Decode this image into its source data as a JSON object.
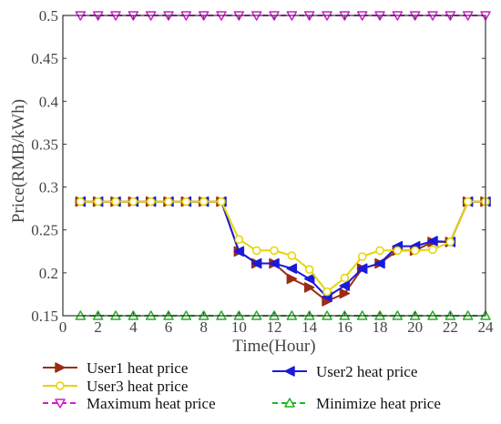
{
  "chart_data": {
    "type": "line",
    "title": "",
    "xlabel": "Time(Hour)",
    "ylabel": "Price(RMB/kWh)",
    "xlim": [
      0,
      24
    ],
    "ylim": [
      0.15,
      0.5
    ],
    "x_ticks": [
      0,
      2,
      4,
      6,
      8,
      10,
      12,
      14,
      16,
      18,
      20,
      22,
      24
    ],
    "y_ticks": [
      0.15,
      0.2,
      0.25,
      0.3,
      0.35,
      0.4,
      0.45,
      0.5
    ],
    "y_tick_labels": [
      "0.15",
      "0.2",
      "0.25",
      "0.3",
      "0.35",
      "0.4",
      "0.45",
      "0.5"
    ],
    "grid": false,
    "legend_position": "bottom",
    "x": [
      1,
      2,
      3,
      4,
      5,
      6,
      7,
      8,
      9,
      10,
      11,
      12,
      13,
      14,
      15,
      16,
      17,
      18,
      19,
      20,
      21,
      22,
      23,
      24
    ],
    "series": [
      {
        "name": "User1 heat price",
        "color": "#9b2d14",
        "marker": "triangle-right",
        "line_style": "solid",
        "values": [
          0.283,
          0.283,
          0.283,
          0.283,
          0.283,
          0.283,
          0.283,
          0.283,
          0.283,
          0.225,
          0.211,
          0.211,
          0.193,
          0.183,
          0.167,
          0.176,
          0.205,
          0.211,
          0.226,
          0.226,
          0.236,
          0.236,
          0.283,
          0.283
        ]
      },
      {
        "name": "User2 heat price",
        "color": "#1a1adb",
        "marker": "triangle-left",
        "line_style": "solid",
        "values": [
          0.283,
          0.283,
          0.283,
          0.283,
          0.283,
          0.283,
          0.283,
          0.283,
          0.283,
          0.225,
          0.211,
          0.211,
          0.205,
          0.193,
          0.172,
          0.185,
          0.205,
          0.211,
          0.231,
          0.231,
          0.237,
          0.236,
          0.283,
          0.283
        ]
      },
      {
        "name": "User3 heat price",
        "color": "#e6d400",
        "marker": "circle",
        "line_style": "solid",
        "values": [
          0.283,
          0.283,
          0.283,
          0.283,
          0.283,
          0.283,
          0.283,
          0.283,
          0.283,
          0.239,
          0.226,
          0.226,
          0.22,
          0.204,
          0.178,
          0.194,
          0.219,
          0.226,
          0.226,
          0.226,
          0.227,
          0.236,
          0.283,
          0.283
        ]
      },
      {
        "name": "Maximum heat price",
        "color": "#d11bd1",
        "marker": "triangle-down",
        "line_style": "dashed",
        "values": [
          0.5,
          0.5,
          0.5,
          0.5,
          0.5,
          0.5,
          0.5,
          0.5,
          0.5,
          0.5,
          0.5,
          0.5,
          0.5,
          0.5,
          0.5,
          0.5,
          0.5,
          0.5,
          0.5,
          0.5,
          0.5,
          0.5,
          0.5,
          0.5
        ]
      },
      {
        "name": "Minimize heat  price",
        "color": "#22b322",
        "marker": "triangle-up",
        "line_style": "dashed",
        "values": [
          0.15,
          0.15,
          0.15,
          0.15,
          0.15,
          0.15,
          0.15,
          0.15,
          0.15,
          0.15,
          0.15,
          0.15,
          0.15,
          0.15,
          0.15,
          0.15,
          0.15,
          0.15,
          0.15,
          0.15,
          0.15,
          0.15,
          0.15,
          0.15
        ]
      }
    ]
  }
}
